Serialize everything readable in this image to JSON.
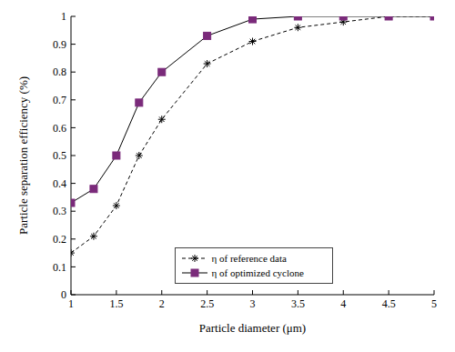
{
  "chart_data": {
    "type": "line",
    "x_label": "Particle diameter (μm)",
    "y_label": "Particle separation efficiency (%)",
    "x": [
      1,
      1.25,
      1.5,
      1.75,
      2,
      2.5,
      3,
      3.5,
      4,
      4.5,
      5
    ],
    "series": [
      {
        "name": "η of reference data",
        "color": "#000000",
        "marker": "asterisk",
        "line_style": "dashed",
        "values": [
          0.15,
          0.21,
          0.32,
          0.5,
          0.63,
          0.83,
          0.91,
          0.96,
          0.98,
          1.0,
          1.0
        ]
      },
      {
        "name": "η of optimized cyclone",
        "color": "#7a2a7a",
        "marker": "square",
        "line_style": "solid",
        "values": [
          0.33,
          0.38,
          0.5,
          0.69,
          0.8,
          0.93,
          0.99,
          1.0,
          1.0,
          1.0,
          1.0
        ]
      }
    ],
    "xlim": [
      1,
      5
    ],
    "xticks": [
      1,
      1.5,
      2,
      2.5,
      3,
      3.5,
      4,
      4.5,
      5
    ],
    "ylim": [
      0,
      1
    ],
    "yticks": [
      0,
      0.1,
      0.2,
      0.3,
      0.4,
      0.5,
      0.6,
      0.7,
      0.8,
      0.9,
      1
    ],
    "grid": false,
    "legend": "lower center"
  }
}
